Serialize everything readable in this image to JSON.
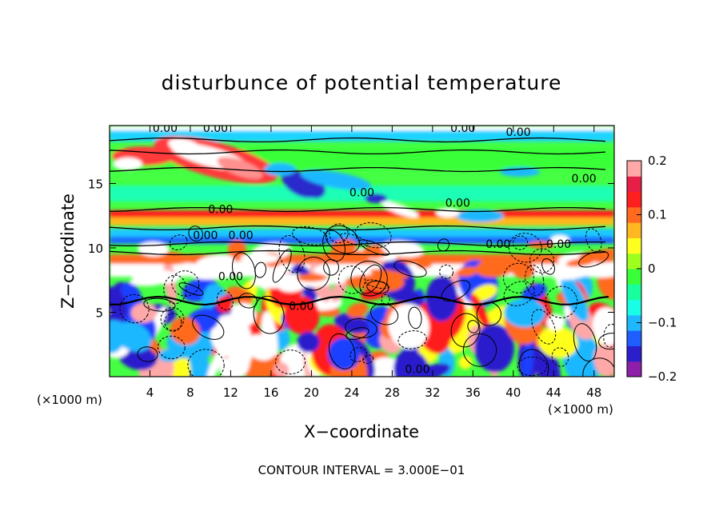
{
  "chart_data": {
    "type": "heatmap",
    "title": "disturbunce of potential temperature",
    "xlabel": "X−coordinate",
    "ylabel": "Z−coordinate",
    "x_unit_left": "(×1000 m)",
    "x_unit_right": "(×1000 m)",
    "footer": "CONTOUR INTERVAL = 3.000E−01",
    "xlim": [
      0,
      50
    ],
    "ylim": [
      0,
      19.5
    ],
    "xticks": [
      4,
      8,
      12,
      16,
      20,
      24,
      28,
      32,
      36,
      40,
      44,
      48
    ],
    "yticks": [
      5,
      10,
      15
    ],
    "colorbar": {
      "range": [
        -0.2,
        0.2
      ],
      "ticks": [
        {
          "value": 0.2,
          "label": "0.2"
        },
        {
          "value": 0.1,
          "label": "0.1"
        },
        {
          "value": 0,
          "label": "0"
        },
        {
          "value": -0.1,
          "label": "−0.1"
        },
        {
          "value": -0.2,
          "label": "−0.2"
        }
      ],
      "colors": [
        "#8e1fa8",
        "#2b1fcc",
        "#1f5fff",
        "#1fb8ff",
        "#18ffe6",
        "#18ff9e",
        "#38ff38",
        "#9eff1f",
        "#ffff1f",
        "#ffb81f",
        "#ff6a1f",
        "#ff1f1f",
        "#e61f47",
        "#ffa8a8"
      ]
    },
    "contour_labels": [
      {
        "x": 5.5,
        "y": 19.3,
        "text": "0.00"
      },
      {
        "x": 10.5,
        "y": 19.3,
        "text": "0.00"
      },
      {
        "x": 35,
        "y": 19.3,
        "text": "0.00"
      },
      {
        "x": 40.5,
        "y": 19.0,
        "text": "0.00"
      },
      {
        "x": 47,
        "y": 15.4,
        "text": "0.00"
      },
      {
        "x": 25,
        "y": 14.3,
        "text": "0.00"
      },
      {
        "x": 34.5,
        "y": 13.5,
        "text": "0.00"
      },
      {
        "x": 11,
        "y": 13.0,
        "text": "0.00"
      },
      {
        "x": 9.5,
        "y": 11.0,
        "text": "0.00"
      },
      {
        "x": 13,
        "y": 11.0,
        "text": "0.00"
      },
      {
        "x": 38.5,
        "y": 10.3,
        "text": "0.00"
      },
      {
        "x": 44.5,
        "y": 10.3,
        "text": "0.00"
      },
      {
        "x": 12,
        "y": 7.8,
        "text": "0.00"
      },
      {
        "x": 19,
        "y": 5.5,
        "text": "0.00"
      },
      {
        "x": 30.5,
        "y": 0.6,
        "text": "0.00"
      }
    ]
  }
}
